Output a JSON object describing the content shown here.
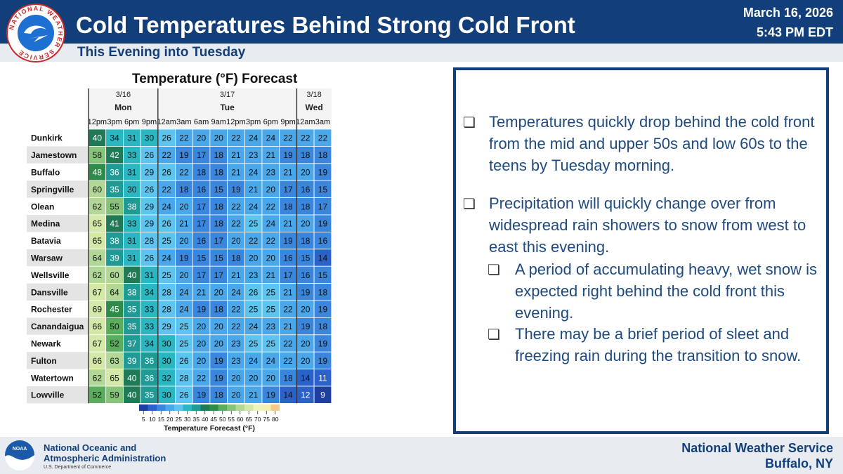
{
  "header": {
    "title": "Cold Temperatures Behind Strong Cold Front",
    "subtitle": "This Evening into Tuesday",
    "date": "March 16, 2026",
    "time": "5:43 PM EDT",
    "logo_text": "NATIONAL WEATHER SERVICE"
  },
  "chart_data": {
    "type": "heatmap",
    "title": "Temperature (°F) Forecast",
    "date_groups": [
      {
        "date": "3/16",
        "day": "Mon"
      },
      {
        "date": "3/17",
        "day": "Tue"
      },
      {
        "date": "3/18",
        "day": "Wed"
      }
    ],
    "hours": [
      "12pm",
      "3pm",
      "6pm",
      "9pm",
      "12am",
      "3am",
      "6am",
      "9am",
      "12pm",
      "3pm",
      "6pm",
      "9pm",
      "12am",
      "3am"
    ],
    "locations": [
      "Dunkirk",
      "Jamestown",
      "Buffalo",
      "Springville",
      "Olean",
      "Medina",
      "Batavia",
      "Warsaw",
      "Wellsville",
      "Dansville",
      "Rochester",
      "Canandaigua",
      "Newark",
      "Fulton",
      "Watertown",
      "Lowville"
    ],
    "values": [
      [
        40,
        34,
        31,
        30,
        26,
        22,
        20,
        20,
        22,
        24,
        24,
        22,
        22,
        22
      ],
      [
        58,
        42,
        33,
        26,
        22,
        19,
        17,
        18,
        21,
        23,
        21,
        19,
        18,
        18
      ],
      [
        48,
        36,
        31,
        29,
        26,
        22,
        18,
        18,
        21,
        24,
        23,
        21,
        20,
        19
      ],
      [
        60,
        35,
        30,
        26,
        22,
        18,
        16,
        15,
        19,
        21,
        20,
        17,
        16,
        15
      ],
      [
        62,
        55,
        38,
        29,
        24,
        20,
        17,
        18,
        22,
        24,
        22,
        18,
        18,
        17
      ],
      [
        65,
        41,
        33,
        29,
        26,
        21,
        17,
        18,
        22,
        25,
        24,
        21,
        20,
        19
      ],
      [
        65,
        38,
        31,
        28,
        25,
        20,
        16,
        17,
        20,
        22,
        22,
        19,
        18,
        16
      ],
      [
        64,
        39,
        31,
        26,
        24,
        19,
        15,
        15,
        18,
        20,
        20,
        16,
        15,
        14
      ],
      [
        62,
        60,
        40,
        31,
        25,
        20,
        17,
        17,
        21,
        23,
        21,
        17,
        16,
        15
      ],
      [
        67,
        64,
        38,
        34,
        28,
        24,
        21,
        20,
        24,
        26,
        25,
        21,
        19,
        18
      ],
      [
        69,
        45,
        35,
        33,
        28,
        24,
        19,
        18,
        22,
        25,
        25,
        22,
        20,
        19
      ],
      [
        66,
        50,
        35,
        33,
        29,
        25,
        20,
        20,
        22,
        24,
        23,
        21,
        19,
        18
      ],
      [
        67,
        52,
        37,
        34,
        30,
        25,
        20,
        20,
        23,
        25,
        25,
        22,
        20,
        19
      ],
      [
        66,
        63,
        39,
        36,
        30,
        26,
        20,
        19,
        23,
        24,
        24,
        22,
        20,
        19
      ],
      [
        62,
        65,
        40,
        36,
        32,
        28,
        22,
        19,
        20,
        20,
        20,
        18,
        14,
        11
      ],
      [
        52,
        59,
        40,
        35,
        30,
        26,
        19,
        18,
        20,
        21,
        19,
        14,
        12,
        9
      ]
    ],
    "colorbar": {
      "ticks": [
        "5",
        "10",
        "15",
        "20",
        "25",
        "30",
        "35",
        "40",
        "45",
        "50",
        "55",
        "60",
        "65",
        "70",
        "75",
        "80"
      ],
      "label": "Temperature Forecast (°F)",
      "range": [
        5,
        80
      ]
    }
  },
  "panel": {
    "bullets": [
      {
        "level": 1,
        "text": "Temperatures quickly drop behind the cold front from the mid and upper 50s and low 60s to the teens by Tuesday morning."
      },
      {
        "level": 1,
        "text": "Precipitation will quickly change over from widespread rain showers to snow from west to east this evening."
      },
      {
        "level": 2,
        "text": "A period of accumulating heavy, wet snow is expected right behind the cold front this evening."
      },
      {
        "level": 2,
        "text": "There may be a brief period of sleet and freezing rain during the transition to snow."
      }
    ],
    "bullet_glyph": "❏"
  },
  "footer": {
    "noaa_line1": "National Oceanic and",
    "noaa_line2": "Atmospheric Administration",
    "noaa_dept": "U.S. Department of Commerce",
    "noaa_logo_text": "NOAA",
    "office_line1": "National Weather Service",
    "office_line2": "Buffalo, NY"
  },
  "colors": {
    "brand": "#123f7a",
    "panel_text": "#1e4a80"
  }
}
